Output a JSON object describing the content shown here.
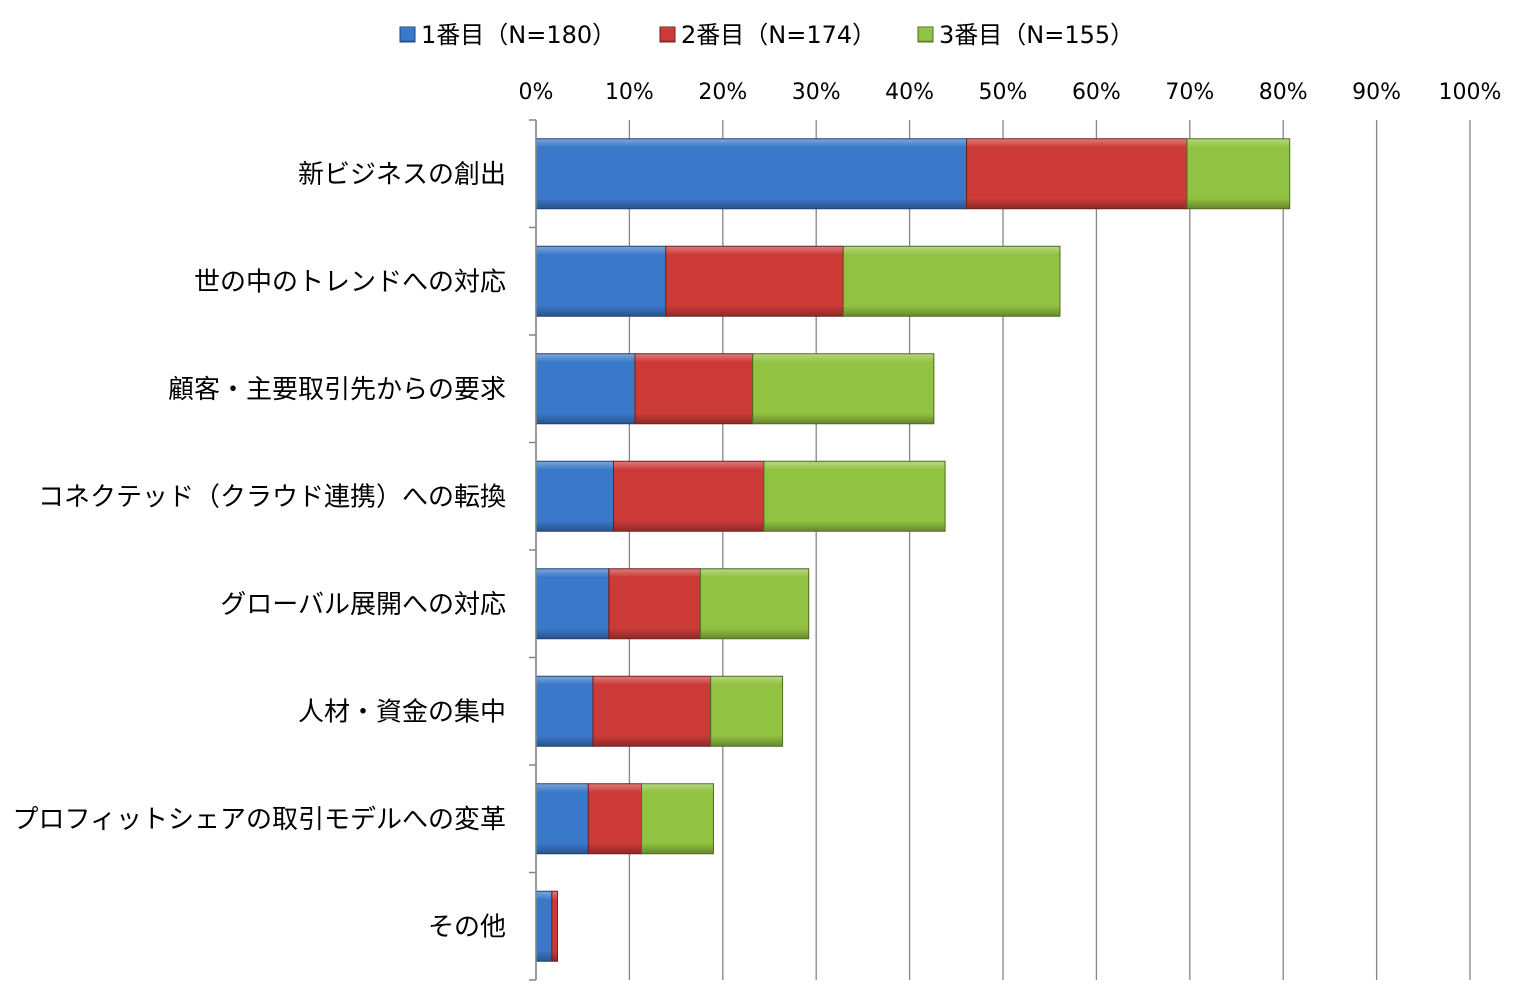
{
  "chart_data": {
    "type": "bar",
    "orientation": "horizontal",
    "stacked": true,
    "categories": [
      "新ビジネスの創出",
      "世の中のトレンドへの対応",
      "顧客・主要取引先からの要求",
      "コネクテッド（クラウド連携）への転換",
      "グローバル展開への対応",
      "人材・資金の集中",
      "プロフィットシェアの取引モデルへの変革",
      "その他"
    ],
    "series": [
      {
        "name": "1番目（N=180）",
        "color": "#3a78c9",
        "values": [
          46.1,
          13.9,
          10.6,
          8.3,
          7.8,
          6.1,
          5.6,
          1.7
        ]
      },
      {
        "name": "2番目（N=174）",
        "color": "#cc3a37",
        "values": [
          23.6,
          19.0,
          12.6,
          16.1,
          9.8,
          12.6,
          5.7,
          0.6
        ]
      },
      {
        "name": "3番目（N=155）",
        "color": "#92c241",
        "values": [
          11.0,
          23.2,
          19.4,
          19.4,
          11.6,
          7.7,
          7.7,
          0.0
        ]
      }
    ],
    "xaxis": {
      "ticks": [
        "0%",
        "10%",
        "20%",
        "30%",
        "40%",
        "50%",
        "60%",
        "70%",
        "80%",
        "90%",
        "100%"
      ],
      "range": [
        0,
        100
      ],
      "position": "top"
    },
    "grid": "vertical",
    "legend": "top"
  }
}
